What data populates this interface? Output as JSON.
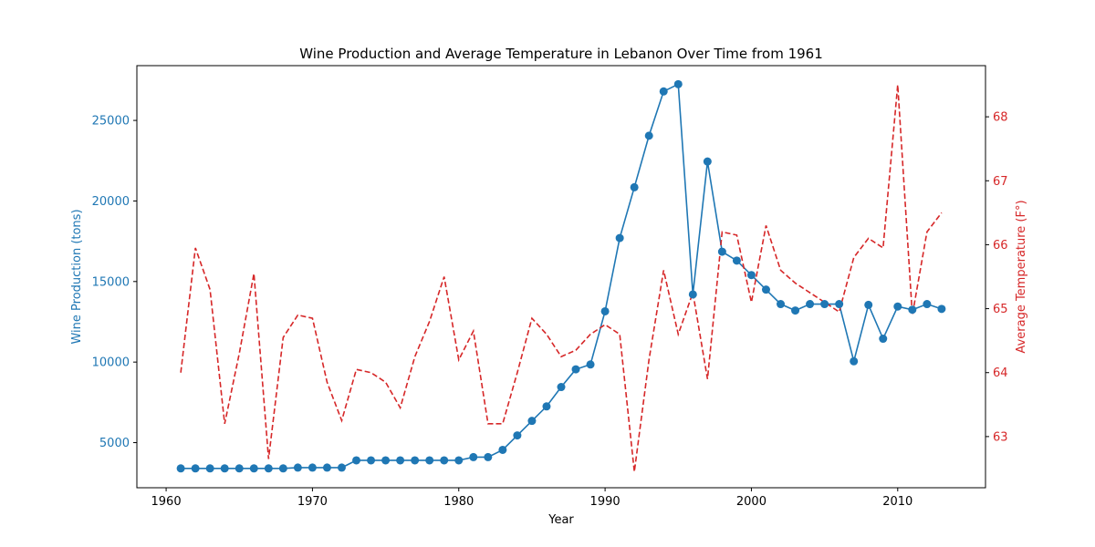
{
  "chart_data": {
    "type": "line",
    "title": "Wine Production and Average Temperature in Lebanon Over Time from 1961",
    "xlabel": "Year",
    "ylabel_left": "Wine Production (tons)",
    "ylabel_right": "Average Temperature (F°)",
    "xlim": [
      1958,
      2016
    ],
    "ylim_left": [
      2200,
      28400
    ],
    "ylim_right": [
      62.2,
      68.8
    ],
    "x_ticks": [
      1960,
      1970,
      1980,
      1990,
      2000,
      2010
    ],
    "y_ticks_left": [
      5000,
      10000,
      15000,
      20000,
      25000
    ],
    "y_ticks_right": [
      63,
      64,
      65,
      66,
      67,
      68
    ],
    "grid": false,
    "colors": {
      "production": "#1f77b4",
      "temperature": "#d62728",
      "axes": "#000000"
    },
    "x": [
      1961,
      1962,
      1963,
      1964,
      1965,
      1966,
      1967,
      1968,
      1969,
      1970,
      1971,
      1972,
      1973,
      1974,
      1975,
      1976,
      1977,
      1978,
      1979,
      1980,
      1981,
      1982,
      1983,
      1984,
      1985,
      1986,
      1987,
      1988,
      1989,
      1990,
      1991,
      1992,
      1993,
      1994,
      1995,
      1996,
      1997,
      1998,
      1999,
      2000,
      2001,
      2002,
      2003,
      2004,
      2005,
      2006,
      2007,
      2008,
      2009,
      2010,
      2011,
      2012,
      2013
    ],
    "series": [
      {
        "axis": "left",
        "style": "solid-markers",
        "values": [
          3400,
          3400,
          3400,
          3400,
          3400,
          3400,
          3400,
          3400,
          3450,
          3450,
          3450,
          3450,
          3900,
          3900,
          3900,
          3900,
          3900,
          3900,
          3900,
          3900,
          4100,
          4100,
          4550,
          5450,
          6350,
          7250,
          8450,
          9550,
          9850,
          13150,
          17700,
          20850,
          24050,
          26800,
          27250,
          14200,
          22450,
          16850,
          16300,
          15400,
          14500,
          13600,
          13200,
          13600,
          13600,
          13600,
          10050,
          13550,
          11450,
          13450,
          13250,
          13600,
          13300
        ]
      },
      {
        "axis": "right",
        "style": "dashed",
        "values": [
          64.0,
          65.95,
          65.3,
          63.2,
          64.3,
          65.55,
          62.65,
          64.55,
          64.9,
          64.85,
          63.85,
          63.25,
          64.05,
          64.0,
          63.85,
          63.45,
          64.25,
          64.8,
          65.5,
          64.2,
          64.65,
          63.2,
          63.2,
          64.0,
          64.85,
          64.6,
          64.25,
          64.35,
          64.6,
          64.75,
          64.6,
          62.45,
          64.2,
          65.6,
          64.6,
          65.25,
          63.9,
          66.2,
          66.15,
          65.1,
          66.3,
          65.6,
          65.4,
          65.25,
          65.1,
          64.95,
          65.8,
          66.1,
          65.95,
          68.5,
          64.9,
          66.2,
          66.5
        ]
      }
    ]
  }
}
